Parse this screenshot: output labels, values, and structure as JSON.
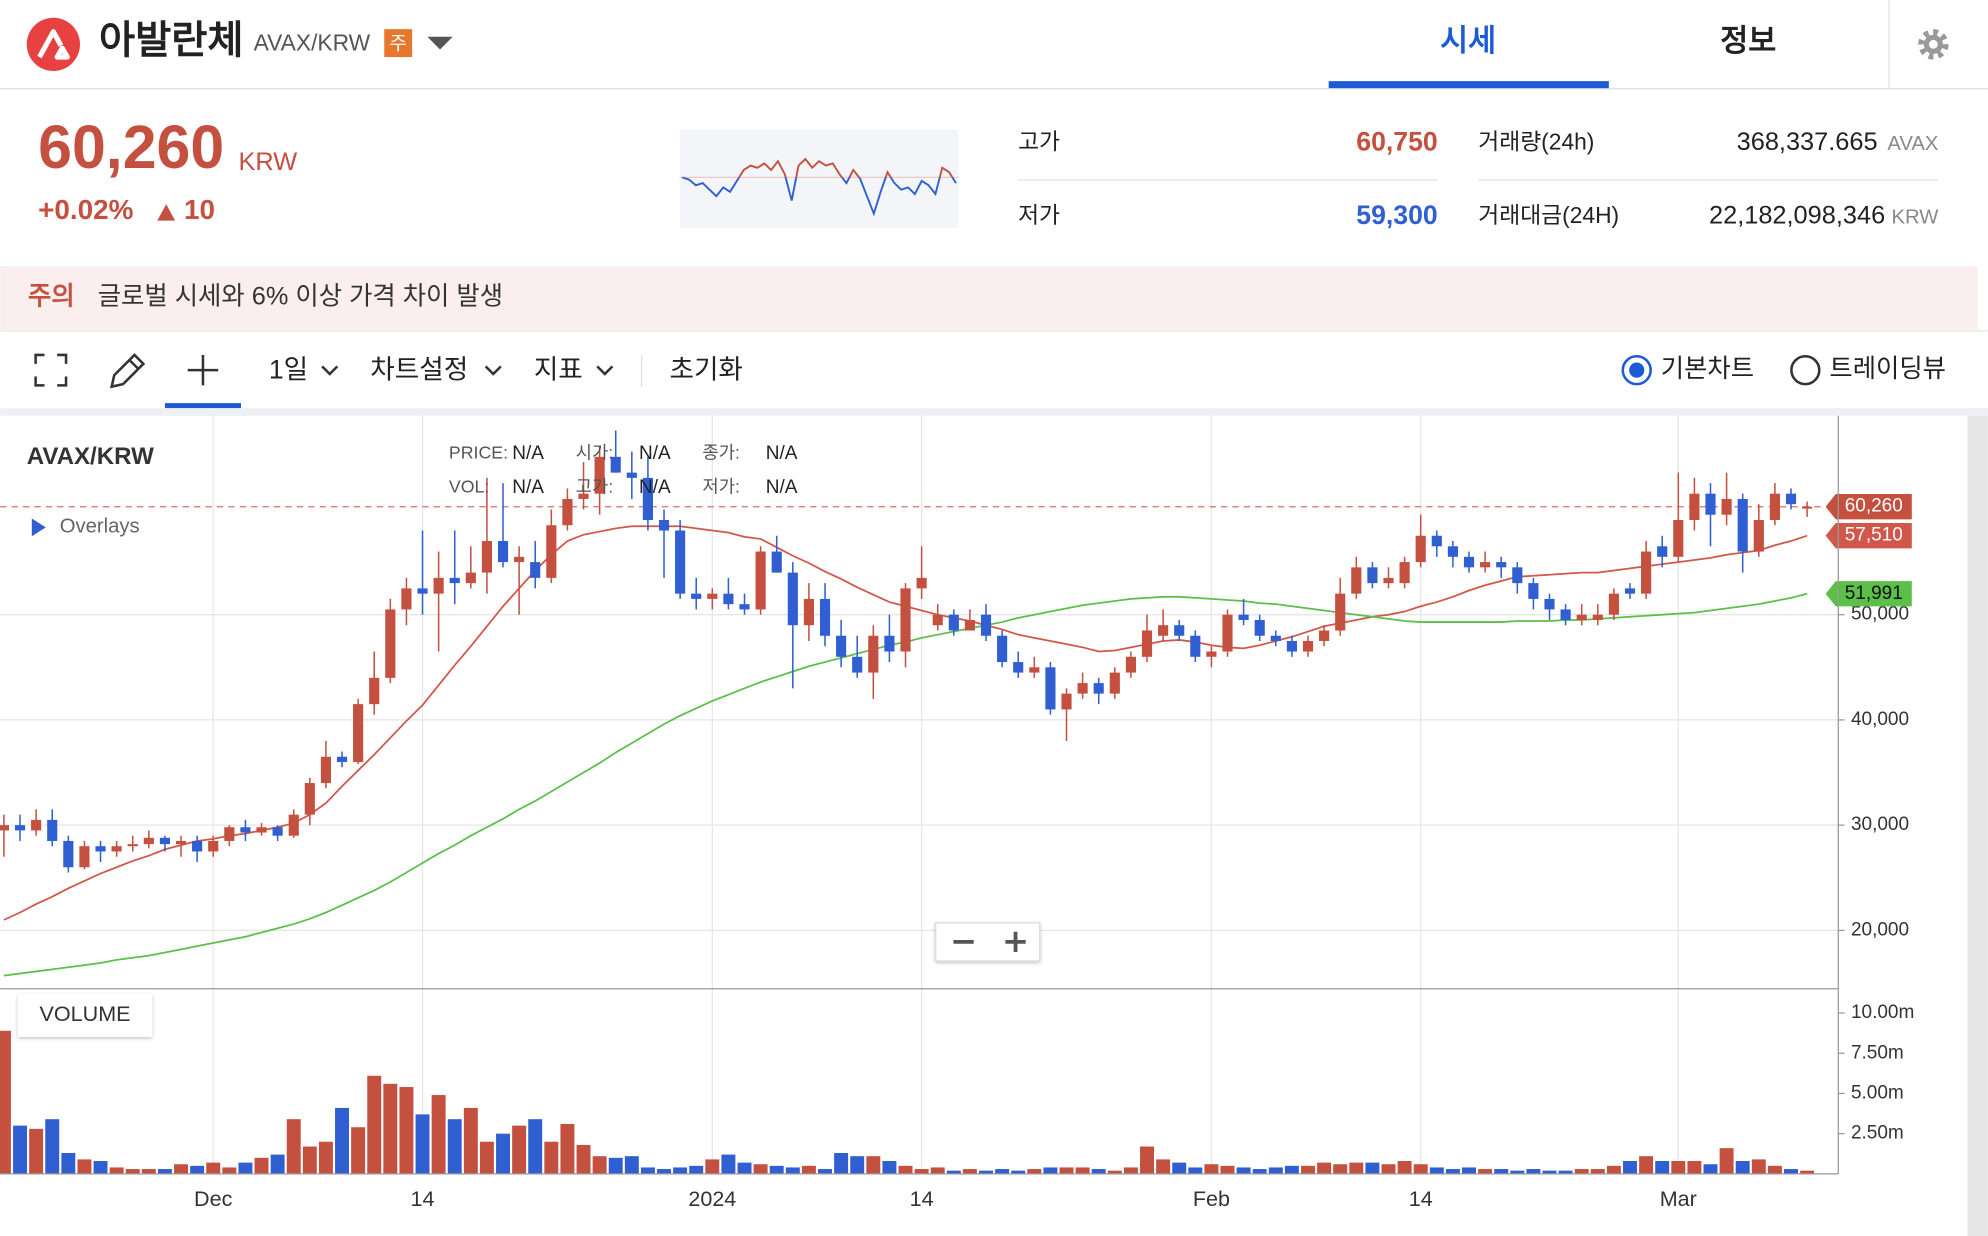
{
  "header": {
    "name": "아발란체",
    "pair": "AVAX/KRW",
    "badge": "주"
  },
  "tabs": [
    "시세",
    "정보"
  ],
  "price": {
    "value": "60,260",
    "unit": "KRW",
    "change_pct": "+0.02%",
    "change": "10"
  },
  "sparkline": {
    "type": "line",
    "values": [
      60230,
      60180,
      60050,
      60100,
      59950,
      59800,
      60000,
      59900,
      60150,
      60400,
      60500,
      60450,
      60550,
      60400,
      60600,
      60300,
      59700,
      60500,
      60650,
      60450,
      60600,
      60500,
      60550,
      60300,
      60100,
      60400,
      60200,
      59800,
      59400,
      59900,
      60350,
      60100,
      59950,
      60000,
      59850,
      60150,
      60050,
      59850,
      60450,
      60350,
      60100
    ],
    "ylim": [
      59300,
      60750
    ],
    "colors": {
      "up": "#c4503f",
      "down": "#2f5fd0"
    }
  },
  "stats": {
    "high": {
      "label": "고가",
      "value": "60,750"
    },
    "low": {
      "label": "저가",
      "value": "59,300"
    },
    "volume": {
      "label": "거래량(24h)",
      "value": "368,337.665",
      "unit": "AVAX"
    },
    "turnover": {
      "label": "거래대금(24H)",
      "value": "22,182,098,346",
      "unit": "KRW"
    }
  },
  "notice": {
    "label": "주의",
    "text": "글로벌 시세와 6% 이상 가격 차이 발생"
  },
  "toolbar": {
    "interval": "1일",
    "settings": "차트설정",
    "indicators": "지표",
    "reset": "초기화",
    "view_options": [
      "기본차트",
      "트레이딩뷰"
    ]
  },
  "chart_data": {
    "type": "candlestick",
    "title": "AVAX/KRW",
    "overlays_label": "Overlays",
    "legend": [
      {
        "label": "PRICE:",
        "value": "N/A"
      },
      {
        "label": "시가:",
        "value": "N/A"
      },
      {
        "label": "종가:",
        "value": "N/A"
      },
      {
        "label": "VOL:",
        "value": "N/A"
      },
      {
        "label": "고가:",
        "value": "N/A"
      },
      {
        "label": "저가:",
        "value": "N/A"
      }
    ],
    "categories": [
      null,
      null,
      null,
      null,
      null,
      null,
      null,
      null,
      null,
      null,
      null,
      null,
      null,
      "Dec",
      null,
      null,
      null,
      null,
      null,
      null,
      null,
      null,
      null,
      null,
      null,
      null,
      "14",
      null,
      null,
      null,
      null,
      null,
      null,
      null,
      null,
      null,
      null,
      null,
      null,
      null,
      null,
      null,
      null,
      null,
      "2024",
      null,
      null,
      null,
      null,
      null,
      null,
      null,
      null,
      null,
      null,
      null,
      null,
      "14",
      null,
      null,
      null,
      null,
      null,
      null,
      null,
      null,
      null,
      null,
      null,
      null,
      null,
      null,
      null,
      null,
      null,
      "Feb",
      null,
      null,
      null,
      null,
      null,
      null,
      null,
      null,
      null,
      null,
      null,
      null,
      "14",
      null,
      null,
      null,
      null,
      null,
      null,
      null,
      null,
      null,
      null,
      null,
      null,
      null,
      null,
      null,
      "Mar",
      null,
      null,
      null,
      null,
      null,
      null,
      null,
      null
    ],
    "open": [
      29500,
      30000,
      29500,
      30500,
      28500,
      26000,
      28000,
      27500,
      28000,
      28200,
      28800,
      28200,
      28500,
      27500,
      28500,
      29800,
      29300,
      29800,
      29000,
      31000,
      34000,
      36500,
      36000,
      41500,
      44000,
      50500,
      52500,
      52000,
      53500,
      53000,
      54000,
      57000,
      55000,
      55000,
      53500,
      58500,
      61000,
      61500,
      65000,
      63500,
      63000,
      59000,
      58000,
      52000,
      51500,
      52000,
      51000,
      50500,
      56000,
      54000,
      49000,
      51500,
      48000,
      46000,
      44500,
      48000,
      46500,
      52500,
      49000,
      50000,
      48500,
      50000,
      48000,
      45500,
      44500,
      45000,
      41000,
      42500,
      43500,
      42500,
      44500,
      46000,
      48000,
      49000,
      48000,
      46000,
      46500,
      50000,
      49500,
      48000,
      47500,
      46500,
      47500,
      48500,
      52000,
      54500,
      53000,
      53000,
      55000,
      57500,
      56500,
      55500,
      54500,
      55000,
      54500,
      53000,
      51500,
      50500,
      49500,
      49500,
      50000,
      52500,
      52000,
      56500,
      55500,
      59000,
      61500,
      59500,
      61000,
      56000,
      59000,
      61500,
      60250
    ],
    "high": [
      31000,
      31000,
      31500,
      31500,
      29000,
      28500,
      28500,
      28500,
      29000,
      29500,
      29000,
      29000,
      29000,
      29000,
      30000,
      30500,
      30200,
      30000,
      31500,
      34500,
      38000,
      37000,
      42000,
      46500,
      51500,
      53500,
      58000,
      56000,
      58000,
      56500,
      63000,
      62500,
      56500,
      57000,
      60000,
      62000,
      64500,
      66000,
      67500,
      65500,
      65000,
      60000,
      59000,
      53500,
      52500,
      53500,
      52000,
      56500,
      57500,
      55000,
      53000,
      53000,
      49500,
      48000,
      49000,
      50000,
      53000,
      56500,
      51000,
      50500,
      50500,
      51000,
      48500,
      46500,
      46000,
      45500,
      43000,
      44500,
      44000,
      45000,
      46500,
      50000,
      50500,
      49500,
      48500,
      47000,
      50500,
      51500,
      50000,
      48500,
      48000,
      48000,
      49000,
      53500,
      55500,
      55000,
      54500,
      55500,
      59500,
      58000,
      57000,
      56000,
      56000,
      55500,
      55000,
      53500,
      52000,
      51000,
      51000,
      51000,
      52500,
      53000,
      57000,
      57500,
      63500,
      63000,
      62500,
      63500,
      61500,
      60500,
      62500,
      62000,
      60750
    ],
    "low": [
      27000,
      28500,
      29000,
      28000,
      25500,
      25800,
      26500,
      27000,
      27500,
      27800,
      27500,
      27000,
      26500,
      27000,
      28000,
      28500,
      29000,
      28500,
      28800,
      30000,
      33500,
      35500,
      35800,
      40500,
      43500,
      49000,
      50000,
      46500,
      51000,
      52500,
      52000,
      54500,
      50000,
      52500,
      53000,
      58000,
      60000,
      59500,
      63500,
      61000,
      58000,
      53500,
      51500,
      50500,
      50500,
      50500,
      50000,
      50000,
      54000,
      43000,
      47500,
      47000,
      45000,
      44000,
      42000,
      45500,
      45000,
      51500,
      48500,
      48000,
      48500,
      47500,
      45000,
      44000,
      44000,
      40500,
      38000,
      42000,
      41500,
      42000,
      44000,
      45500,
      47500,
      47500,
      45500,
      45000,
      46000,
      49000,
      47500,
      47000,
      46000,
      46000,
      47000,
      48000,
      51500,
      52500,
      52500,
      52500,
      54500,
      55500,
      54500,
      54000,
      54000,
      53500,
      52000,
      50500,
      49500,
      49000,
      49000,
      49000,
      49500,
      51500,
      51500,
      54500,
      55000,
      58000,
      56500,
      58500,
      54000,
      55500,
      58500,
      60000,
      59300
    ],
    "close": [
      30000,
      29500,
      30500,
      28500,
      26000,
      28000,
      27500,
      28000,
      28200,
      28800,
      28200,
      28500,
      27500,
      28500,
      29800,
      29300,
      29800,
      29000,
      31000,
      34000,
      36500,
      36000,
      41500,
      44000,
      50500,
      52500,
      52000,
      53500,
      53000,
      54000,
      57000,
      55000,
      55500,
      53500,
      58500,
      61000,
      61500,
      65000,
      63500,
      63000,
      59000,
      58000,
      52000,
      51500,
      52000,
      51000,
      50500,
      56000,
      54000,
      49000,
      51500,
      48000,
      46000,
      44500,
      48000,
      46500,
      52500,
      53500,
      50000,
      48500,
      49500,
      48000,
      45500,
      44500,
      45000,
      41000,
      42500,
      43500,
      42500,
      44500,
      46000,
      48500,
      49000,
      48000,
      46000,
      46500,
      50000,
      49500,
      48000,
      47500,
      46500,
      47500,
      48500,
      52000,
      54500,
      53000,
      53500,
      55000,
      57500,
      56500,
      55500,
      54500,
      55000,
      54500,
      53000,
      51500,
      50500,
      49500,
      50000,
      50000,
      52000,
      52000,
      56000,
      55500,
      59000,
      61500,
      59500,
      61000,
      56000,
      59000,
      61500,
      60500,
      60260
    ],
    "last_label": "60,260",
    "colors": {
      "up": "#c4503f",
      "down": "#2f5fd0"
    },
    "ylim": [
      14450,
      68900
    ],
    "yticks": [
      {
        "value": 20000,
        "label": "20,000"
      },
      {
        "value": 30000,
        "label": "30,000"
      },
      {
        "value": 40000,
        "label": "40,000"
      },
      {
        "value": 50000,
        "label": "50,000"
      }
    ],
    "overlays": [
      {
        "color": "#d0584a",
        "last_label": "57,510",
        "values": [
          21000,
          21700,
          22500,
          23200,
          24000,
          24700,
          25400,
          26000,
          26600,
          27100,
          27700,
          28100,
          28500,
          28700,
          29000,
          29200,
          29500,
          29800,
          30200,
          31000,
          32100,
          33700,
          35200,
          36700,
          38300,
          39900,
          41400,
          43300,
          45200,
          47000,
          48900,
          50800,
          52500,
          54200,
          55700,
          57000,
          57600,
          57900,
          58200,
          58400,
          58400,
          58400,
          58400,
          58200,
          58000,
          57800,
          57400,
          57200,
          56400,
          55600,
          54900,
          54100,
          53400,
          52600,
          51900,
          51200,
          50800,
          50400,
          50000,
          49700,
          49400,
          49000,
          48600,
          48100,
          47800,
          47500,
          47200,
          46900,
          46500,
          46600,
          46900,
          47200,
          47500,
          47600,
          47400,
          47100,
          46900,
          46800,
          47100,
          47500,
          47900,
          48400,
          48900,
          49200,
          49500,
          49800,
          50000,
          50300,
          50800,
          51200,
          51700,
          52300,
          52800,
          53200,
          53600,
          53700,
          53800,
          53900,
          54000,
          54000,
          54200,
          54400,
          54600,
          54800,
          55000,
          55200,
          55400,
          55700,
          55900,
          56100,
          56600,
          57000,
          57510
        ]
      },
      {
        "color": "#5cbf4a",
        "last_label": "51,991",
        "values": [
          15700,
          15900,
          16100,
          16300,
          16500,
          16700,
          16900,
          17200,
          17400,
          17600,
          17900,
          18200,
          18500,
          18800,
          19100,
          19400,
          19800,
          20200,
          20600,
          21100,
          21700,
          22400,
          23100,
          23800,
          24600,
          25500,
          26400,
          27300,
          28100,
          29000,
          29800,
          30600,
          31500,
          32300,
          33200,
          34100,
          35000,
          35900,
          36900,
          37800,
          38700,
          39600,
          40400,
          41100,
          41800,
          42400,
          43000,
          43600,
          44100,
          44600,
          45100,
          45500,
          45900,
          46300,
          46700,
          47100,
          47400,
          47800,
          48100,
          48400,
          48700,
          49000,
          49300,
          49700,
          50000,
          50300,
          50600,
          50900,
          51100,
          51300,
          51500,
          51600,
          51700,
          51700,
          51600,
          51500,
          51400,
          51300,
          51100,
          51000,
          50800,
          50600,
          50400,
          50200,
          50000,
          49800,
          49600,
          49400,
          49300,
          49300,
          49300,
          49300,
          49300,
          49300,
          49400,
          49400,
          49400,
          49500,
          49500,
          49600,
          49700,
          49800,
          49900,
          50000,
          50100,
          50200,
          50400,
          50600,
          50800,
          51000,
          51300,
          51600,
          51991
        ]
      }
    ],
    "volume": {
      "title": "VOLUME",
      "ylim": [
        0,
        11.35
      ],
      "yticks": [
        {
          "value": 2.5,
          "label": "2.50m"
        },
        {
          "value": 5,
          "label": "5.00m"
        },
        {
          "value": 7.5,
          "label": "7.50m"
        },
        {
          "value": 10,
          "label": "10.00m"
        }
      ],
      "values": [
        8.9,
        3.0,
        2.8,
        3.4,
        1.3,
        0.9,
        0.8,
        0.4,
        0.3,
        0.3,
        0.3,
        0.6,
        0.5,
        0.7,
        0.4,
        0.7,
        1.0,
        1.2,
        3.4,
        1.7,
        2.0,
        4.1,
        2.9,
        6.1,
        5.6,
        5.4,
        3.7,
        4.9,
        3.4,
        4.1,
        2.0,
        2.5,
        3.0,
        3.4,
        2.0,
        3.1,
        1.8,
        1.1,
        1.0,
        1.1,
        0.4,
        0.3,
        0.4,
        0.5,
        0.9,
        1.2,
        0.7,
        0.6,
        0.5,
        0.4,
        0.5,
        0.3,
        1.3,
        1.1,
        1.1,
        0.8,
        0.5,
        0.3,
        0.4,
        0.2,
        0.3,
        0.2,
        0.3,
        0.2,
        0.3,
        0.4,
        0.4,
        0.4,
        0.3,
        0.2,
        0.4,
        1.7,
        0.9,
        0.7,
        0.4,
        0.6,
        0.5,
        0.4,
        0.3,
        0.4,
        0.5,
        0.5,
        0.7,
        0.6,
        0.7,
        0.7,
        0.6,
        0.8,
        0.6,
        0.4,
        0.3,
        0.4,
        0.3,
        0.3,
        0.2,
        0.3,
        0.2,
        0.2,
        0.3,
        0.3,
        0.5,
        0.8,
        1.1,
        0.8,
        0.8,
        0.8,
        0.6,
        1.6,
        0.8,
        0.9,
        0.5,
        0.3,
        0.2
      ]
    }
  }
}
